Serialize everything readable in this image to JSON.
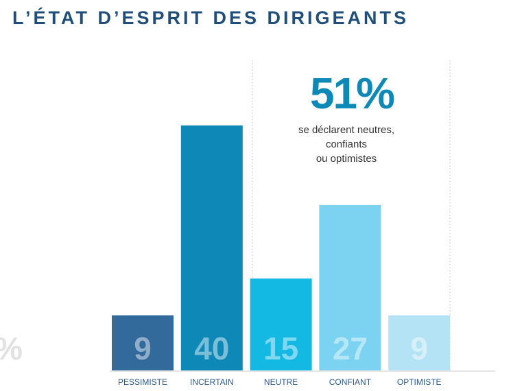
{
  "chart_data": {
    "type": "bar",
    "title": "L’ÉTAT D’ESPRIT DES DIRIGEANTS",
    "categories": [
      "PESSIMISTE",
      "INCERTAIN",
      "NEUTRE",
      "CONFIANT",
      "OPTIMISTE"
    ],
    "values": [
      9,
      40,
      15,
      27,
      9
    ],
    "colors": [
      "#336a9c",
      "#0e89b7",
      "#13b8e3",
      "#7bd3f1",
      "#b5e3f6"
    ],
    "highlight": "51%",
    "highlight_text": [
      "se déclarent neutres,",
      "confiants",
      "ou optimistes"
    ],
    "partial_label": "%"
  }
}
